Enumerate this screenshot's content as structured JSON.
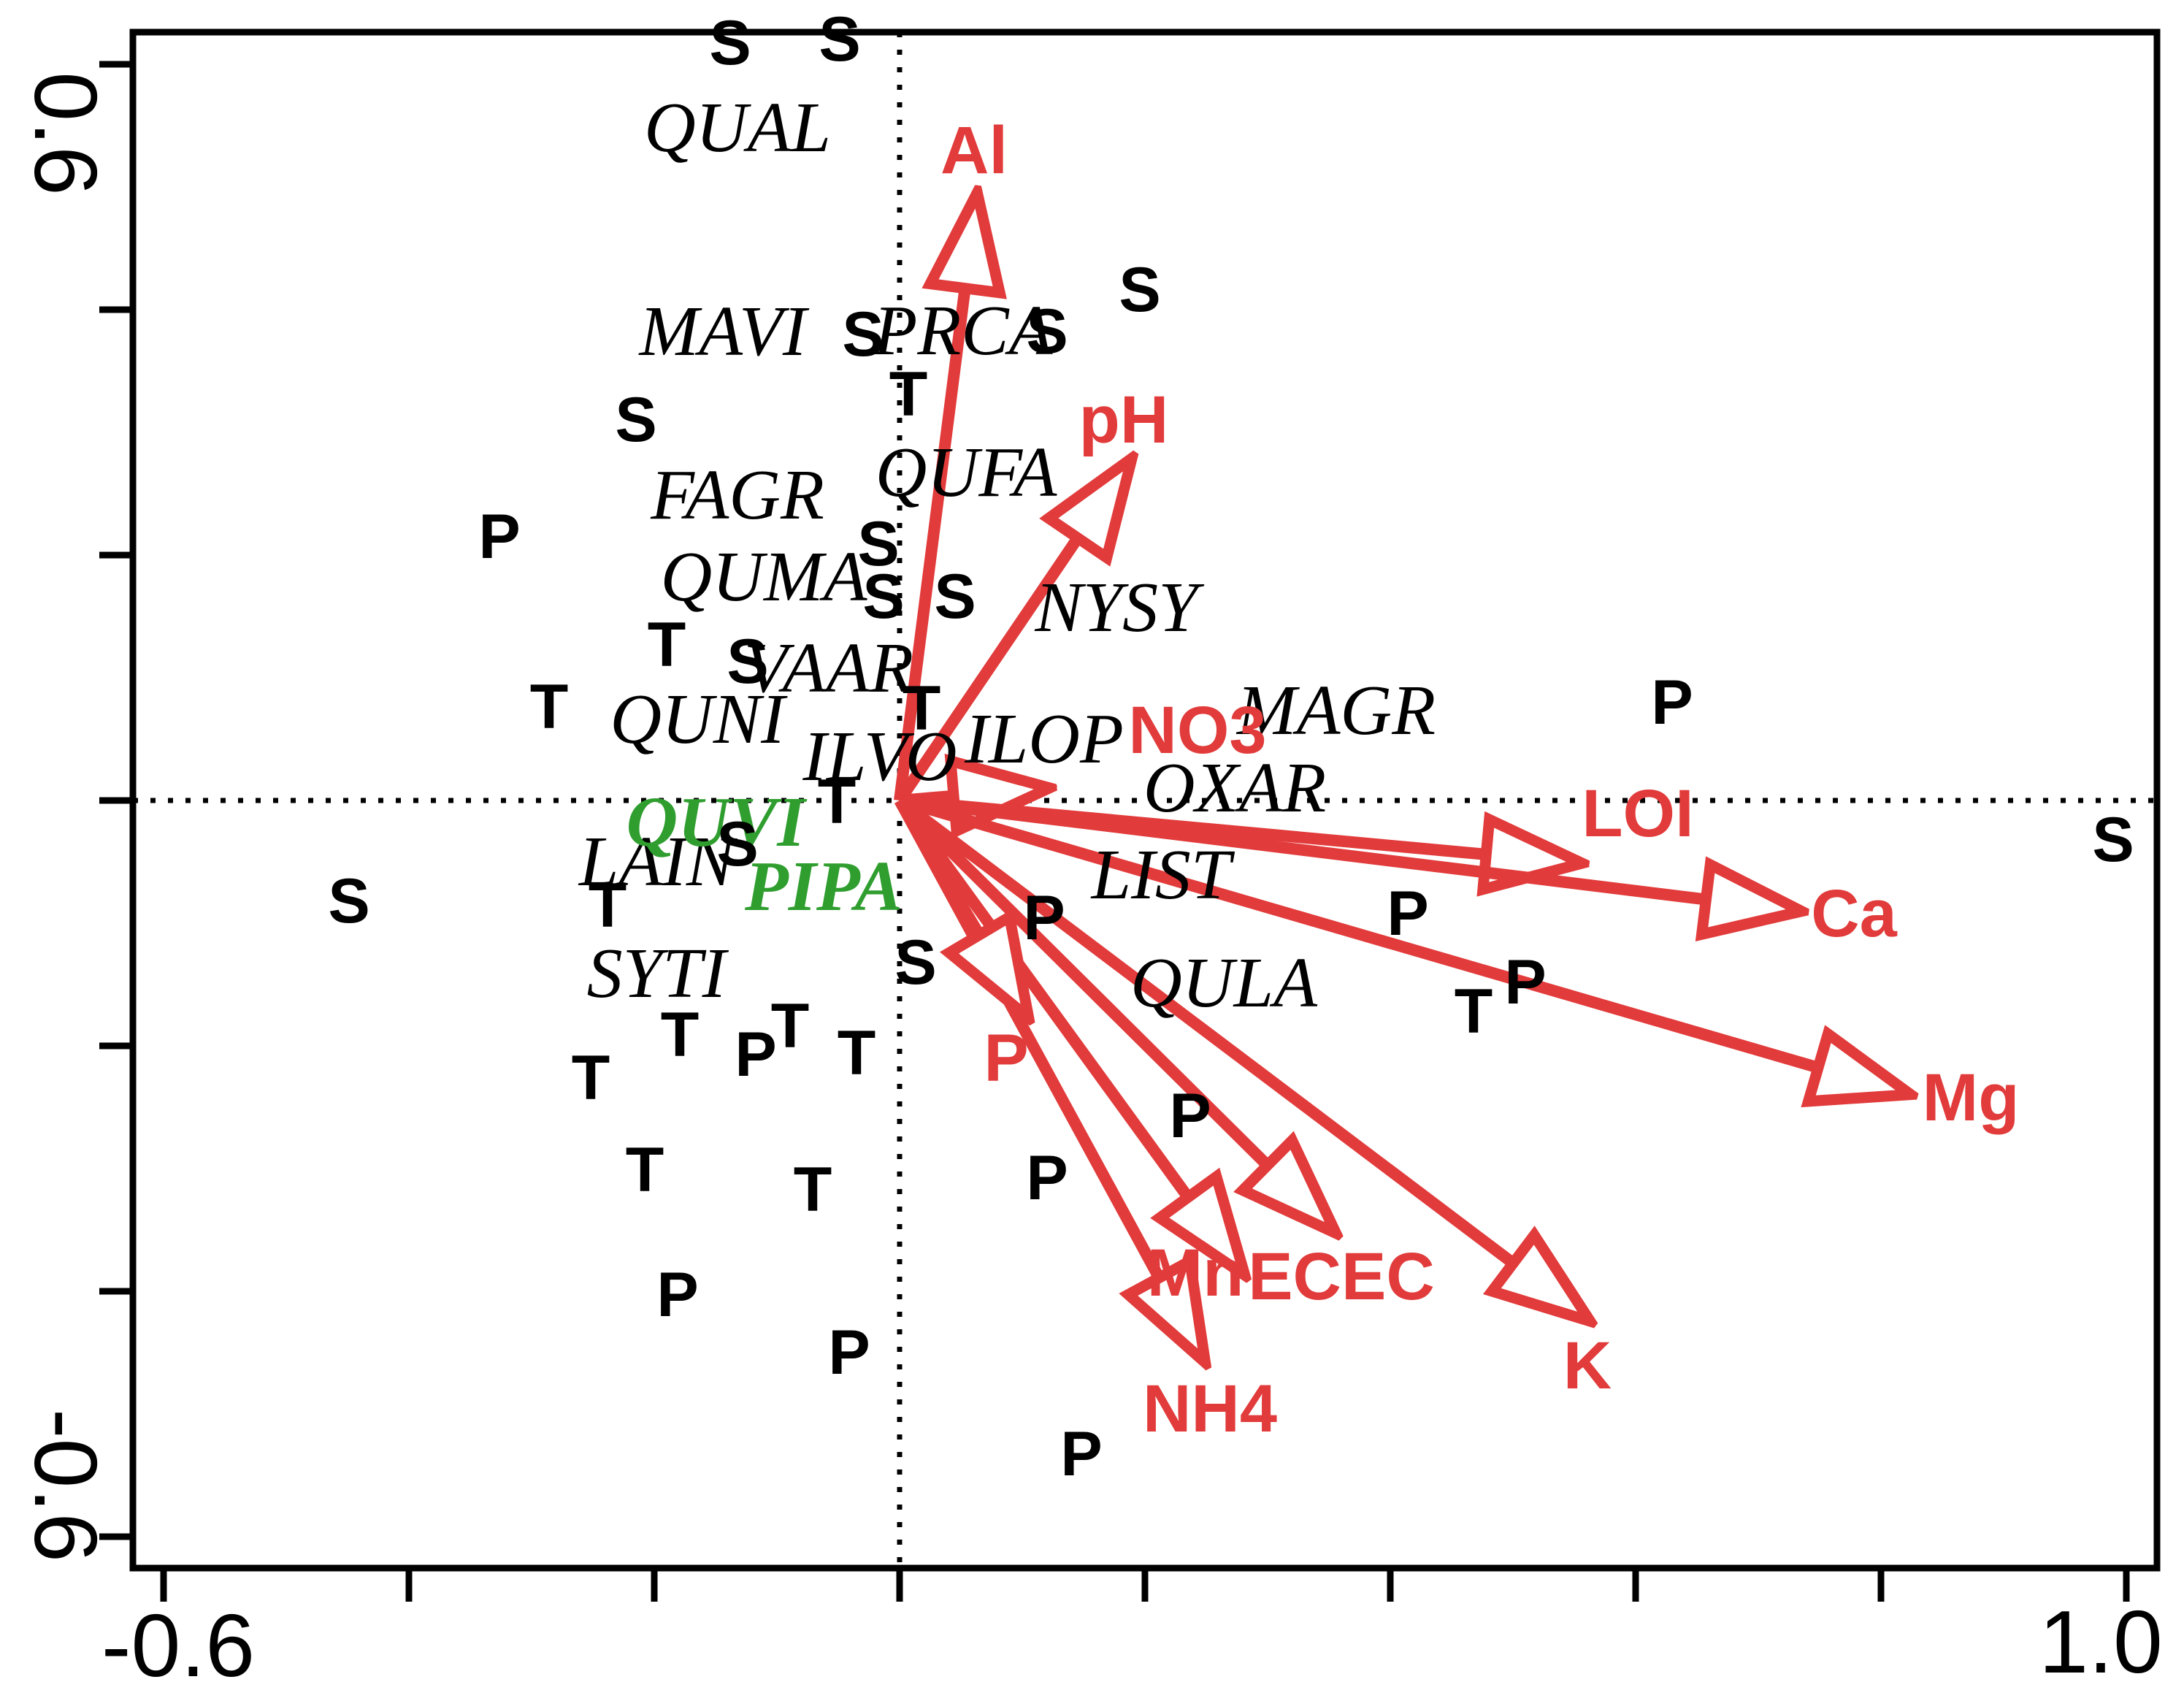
{
  "chart_data": {
    "type": "scatter",
    "subtype": "ordination-biplot",
    "title": "",
    "grid": false,
    "arrows_from_origin": true,
    "colors": {
      "species": "#000000",
      "highlight_species": "#2f9e2f",
      "environment": "#e23b3b",
      "samples": "#000000",
      "axis": "#000000"
    },
    "x_axis": {
      "min": -0.625,
      "max": 1.025,
      "tick_values": [
        -0.6,
        -0.4,
        -0.2,
        0,
        0.2,
        0.4,
        0.6,
        0.8,
        1.0
      ],
      "label_min": "-0.6",
      "label_max": "1.0"
    },
    "y_axis": {
      "min": -0.626,
      "max": 0.626,
      "tick_values": [
        -0.6,
        -0.4,
        -0.2,
        0,
        0.2,
        0.4,
        0.6
      ],
      "label_min": "-0.6",
      "label_max": "0.6"
    },
    "reference_lines": {
      "vertical_x": 0,
      "horizontal_y": 0,
      "style": "dotted"
    },
    "species": [
      {
        "code": "QUAL",
        "x": -0.132,
        "y": 0.548,
        "highlight": false
      },
      {
        "code": "MAVI",
        "x": -0.144,
        "y": 0.382,
        "highlight": false
      },
      {
        "code": "PRCA",
        "x": 0.052,
        "y": 0.383,
        "highlight": false
      },
      {
        "code": "QUFA",
        "x": 0.054,
        "y": 0.267,
        "highlight": false
      },
      {
        "code": "FAGR",
        "x": -0.132,
        "y": 0.249,
        "highlight": false
      },
      {
        "code": "QUMA",
        "x": -0.111,
        "y": 0.182,
        "highlight": false
      },
      {
        "code": "NYSY",
        "x": 0.177,
        "y": 0.157,
        "highlight": false
      },
      {
        "code": "VAAR",
        "x": -0.058,
        "y": 0.108,
        "highlight": false
      },
      {
        "code": "QUNI",
        "x": -0.165,
        "y": 0.066,
        "highlight": false
      },
      {
        "code": "ILVO",
        "x": -0.016,
        "y": 0.036,
        "highlight": false
      },
      {
        "code": "ILOP",
        "x": 0.118,
        "y": 0.05,
        "highlight": false
      },
      {
        "code": "MAGR",
        "x": 0.356,
        "y": 0.073,
        "highlight": false
      },
      {
        "code": "OXAR",
        "x": 0.273,
        "y": 0.01,
        "highlight": false
      },
      {
        "code": "LIST",
        "x": 0.213,
        "y": -0.061,
        "highlight": false
      },
      {
        "code": "QULA",
        "x": 0.264,
        "y": -0.149,
        "highlight": false
      },
      {
        "code": "LAIN",
        "x": -0.198,
        "y": -0.05,
        "highlight": false
      },
      {
        "code": "SYTI",
        "x": -0.198,
        "y": -0.141,
        "highlight": false
      },
      {
        "code": "QUVI",
        "x": -0.15,
        "y": -0.018,
        "highlight": true
      },
      {
        "code": "PIPA",
        "x": -0.062,
        "y": -0.07,
        "highlight": true
      }
    ],
    "env_vectors": [
      {
        "name": "Al",
        "x": 0.063,
        "y": 0.493,
        "label_x": 0.061,
        "label_y": 0.53
      },
      {
        "name": "pH",
        "x": 0.188,
        "y": 0.277,
        "label_x": 0.183,
        "label_y": 0.31
      },
      {
        "name": "NO3",
        "x": 0.12,
        "y": 0.01,
        "label_x": 0.243,
        "label_y": 0.057
      },
      {
        "name": "LOI",
        "x": 0.554,
        "y": -0.051,
        "label_x": 0.602,
        "label_y": -0.011
      },
      {
        "name": "Ca",
        "x": 0.733,
        "y": -0.09,
        "label_x": 0.778,
        "label_y": -0.092
      },
      {
        "name": "Mg",
        "x": 0.822,
        "y": -0.239,
        "label_x": 0.873,
        "label_y": -0.242
      },
      {
        "name": "K",
        "x": 0.561,
        "y": -0.423,
        "label_x": 0.561,
        "label_y": -0.461
      },
      {
        "name": "ECEC",
        "x": 0.354,
        "y": -0.351,
        "label_x": 0.36,
        "label_y": -0.388
      },
      {
        "name": "Mn",
        "x": 0.28,
        "y": -0.385,
        "label_x": 0.241,
        "label_y": -0.385
      },
      {
        "name": "NH4",
        "x": 0.248,
        "y": -0.456,
        "label_x": 0.253,
        "label_y": -0.496
      },
      {
        "name": "P",
        "x": 0.104,
        "y": -0.175,
        "label_x": 0.087,
        "label_y": -0.21
      }
    ],
    "samples": [
      {
        "label": "S",
        "x": -0.138,
        "y": 0.617
      },
      {
        "label": "S",
        "x": -0.049,
        "y": 0.62
      },
      {
        "label": "S",
        "x": 0.196,
        "y": 0.416
      },
      {
        "label": "S",
        "x": -0.03,
        "y": 0.38
      },
      {
        "label": "S",
        "x": 0.12,
        "y": 0.382
      },
      {
        "label": "S",
        "x": -0.215,
        "y": 0.31
      },
      {
        "label": "S",
        "x": -0.017,
        "y": 0.209
      },
      {
        "label": "S",
        "x": -0.013,
        "y": 0.166
      },
      {
        "label": "S",
        "x": 0.045,
        "y": 0.166
      },
      {
        "label": "S",
        "x": -0.124,
        "y": 0.113
      },
      {
        "label": "S",
        "x": -0.132,
        "y": -0.036
      },
      {
        "label": "S",
        "x": -0.449,
        "y": -0.082
      },
      {
        "label": "S",
        "x": 0.013,
        "y": -0.132
      },
      {
        "label": "S",
        "x": 0.989,
        "y": -0.032
      },
      {
        "label": "T",
        "x": 0.007,
        "y": 0.331
      },
      {
        "label": "T",
        "x": -0.19,
        "y": 0.127
      },
      {
        "label": "T",
        "x": -0.286,
        "y": 0.076
      },
      {
        "label": "T",
        "x": 0.018,
        "y": 0.075
      },
      {
        "label": "T",
        "x": -0.051,
        "y": -0.001
      },
      {
        "label": "T",
        "x": -0.238,
        "y": -0.086
      },
      {
        "label": "T",
        "x": -0.089,
        "y": -0.184
      },
      {
        "label": "T",
        "x": -0.179,
        "y": -0.191
      },
      {
        "label": "T",
        "x": -0.035,
        "y": -0.206
      },
      {
        "label": "T",
        "x": -0.252,
        "y": -0.226
      },
      {
        "label": "T",
        "x": -0.208,
        "y": -0.301
      },
      {
        "label": "T",
        "x": -0.071,
        "y": -0.317
      },
      {
        "label": "T",
        "x": 0.468,
        "y": -0.172
      },
      {
        "label": "P",
        "x": -0.326,
        "y": 0.215
      },
      {
        "label": "P",
        "x": 0.63,
        "y": 0.08
      },
      {
        "label": "P",
        "x": 0.118,
        "y": -0.096
      },
      {
        "label": "P",
        "x": 0.51,
        "y": -0.148
      },
      {
        "label": "P",
        "x": 0.414,
        "y": -0.092
      },
      {
        "label": "P",
        "x": 0.237,
        "y": -0.257
      },
      {
        "label": "P",
        "x": 0.12,
        "y": -0.308
      },
      {
        "label": "P",
        "x": -0.117,
        "y": -0.207
      },
      {
        "label": "P",
        "x": -0.181,
        "y": -0.403
      },
      {
        "label": "P",
        "x": -0.041,
        "y": -0.45
      },
      {
        "label": "P",
        "x": 0.148,
        "y": -0.533
      }
    ]
  }
}
